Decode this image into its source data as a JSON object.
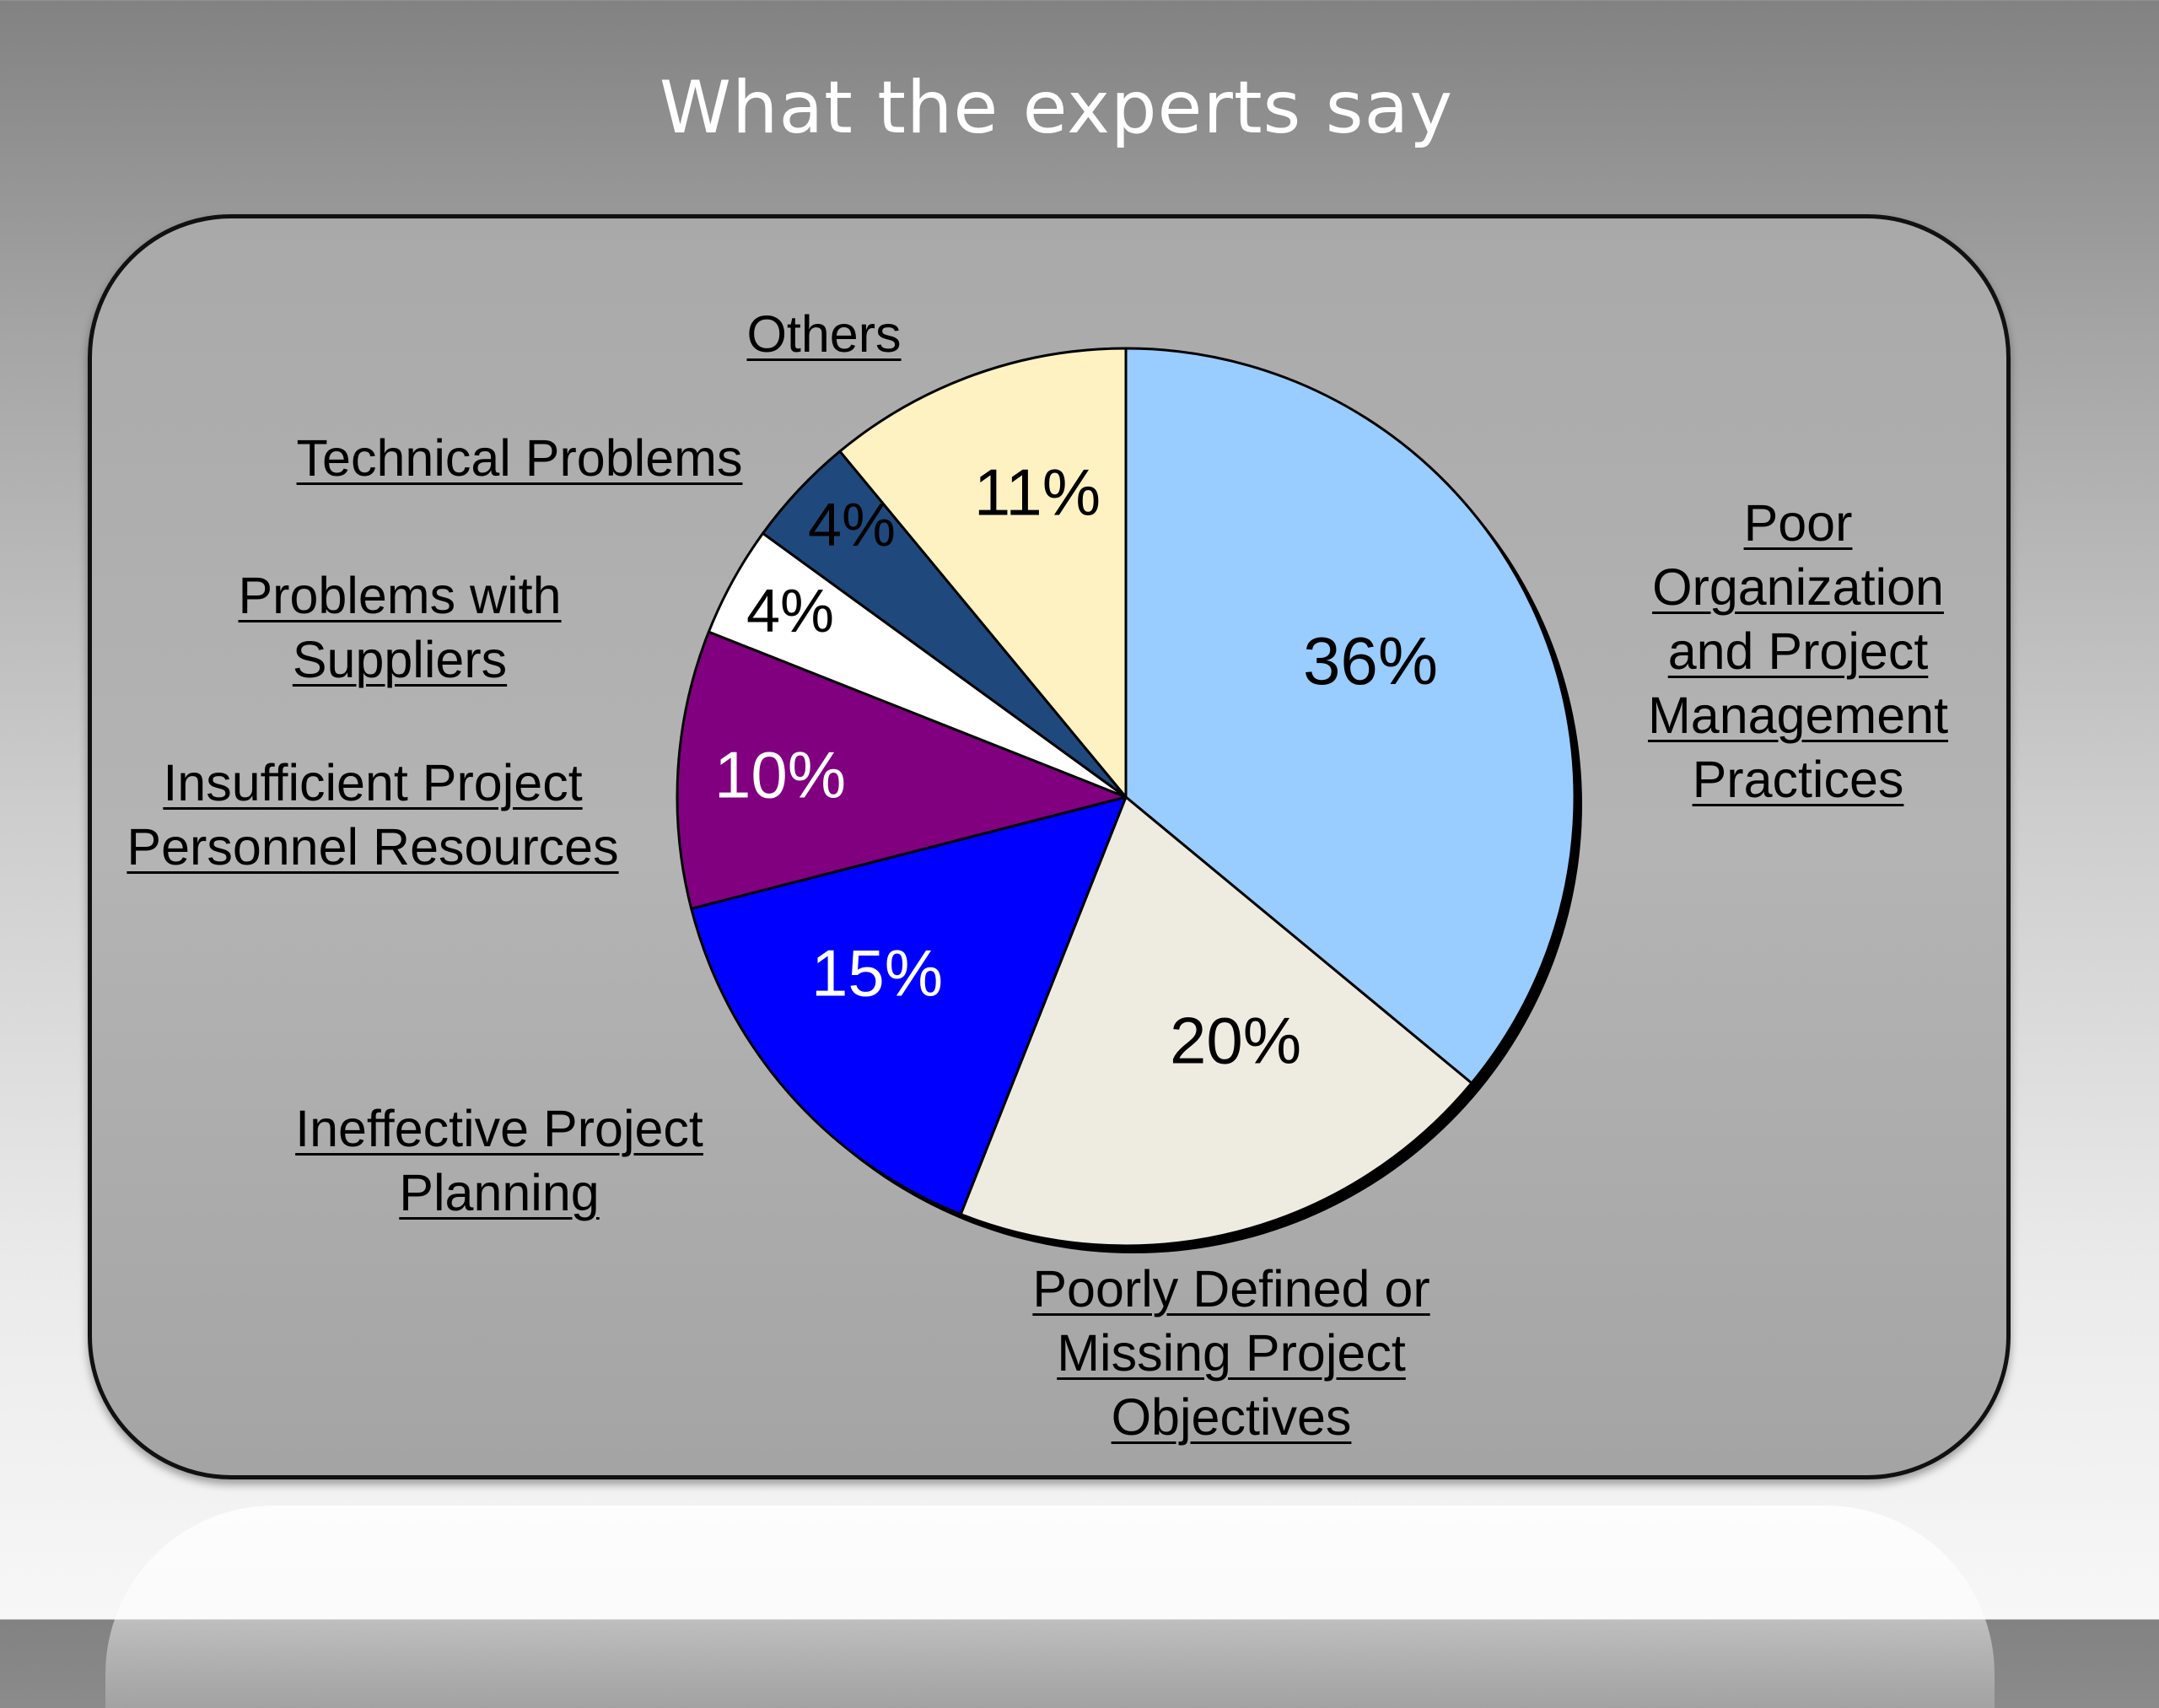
{
  "slide": {
    "title": "What the experts say"
  },
  "chart_data": {
    "type": "pie",
    "title": "",
    "categories": [
      {
        "lines": [
          "Poor",
          "Organization",
          "and Project",
          "Management",
          "Practices"
        ]
      },
      {
        "lines": [
          "Poorly Defined or",
          "Missing Project",
          "Objectives"
        ]
      },
      {
        "lines": [
          "Ineffective Project",
          "Planning"
        ]
      },
      {
        "lines": [
          "Insufficient Project",
          "Personnel Resources"
        ]
      },
      {
        "lines": [
          "Problems with",
          "Suppliers"
        ]
      },
      {
        "lines": [
          "Technical Problems"
        ]
      },
      {
        "lines": [
          "Others"
        ]
      }
    ],
    "values": [
      36,
      20,
      15,
      10,
      4,
      4,
      11
    ],
    "data_labels": [
      "36%",
      "20%",
      "15%",
      "10%",
      "4%",
      "4%",
      "11%"
    ],
    "colors": [
      "#99ccff",
      "#eeece1",
      "#0000ff",
      "#800080",
      "#ffffff",
      "#1f497d",
      "#fff2c2"
    ],
    "label_colors": [
      "#000000",
      "#000000",
      "#ffffff",
      "#ffffff",
      "#000000",
      "#000000",
      "#000000"
    ],
    "start_angle": "12 o'clock",
    "direction": "clockwise"
  }
}
